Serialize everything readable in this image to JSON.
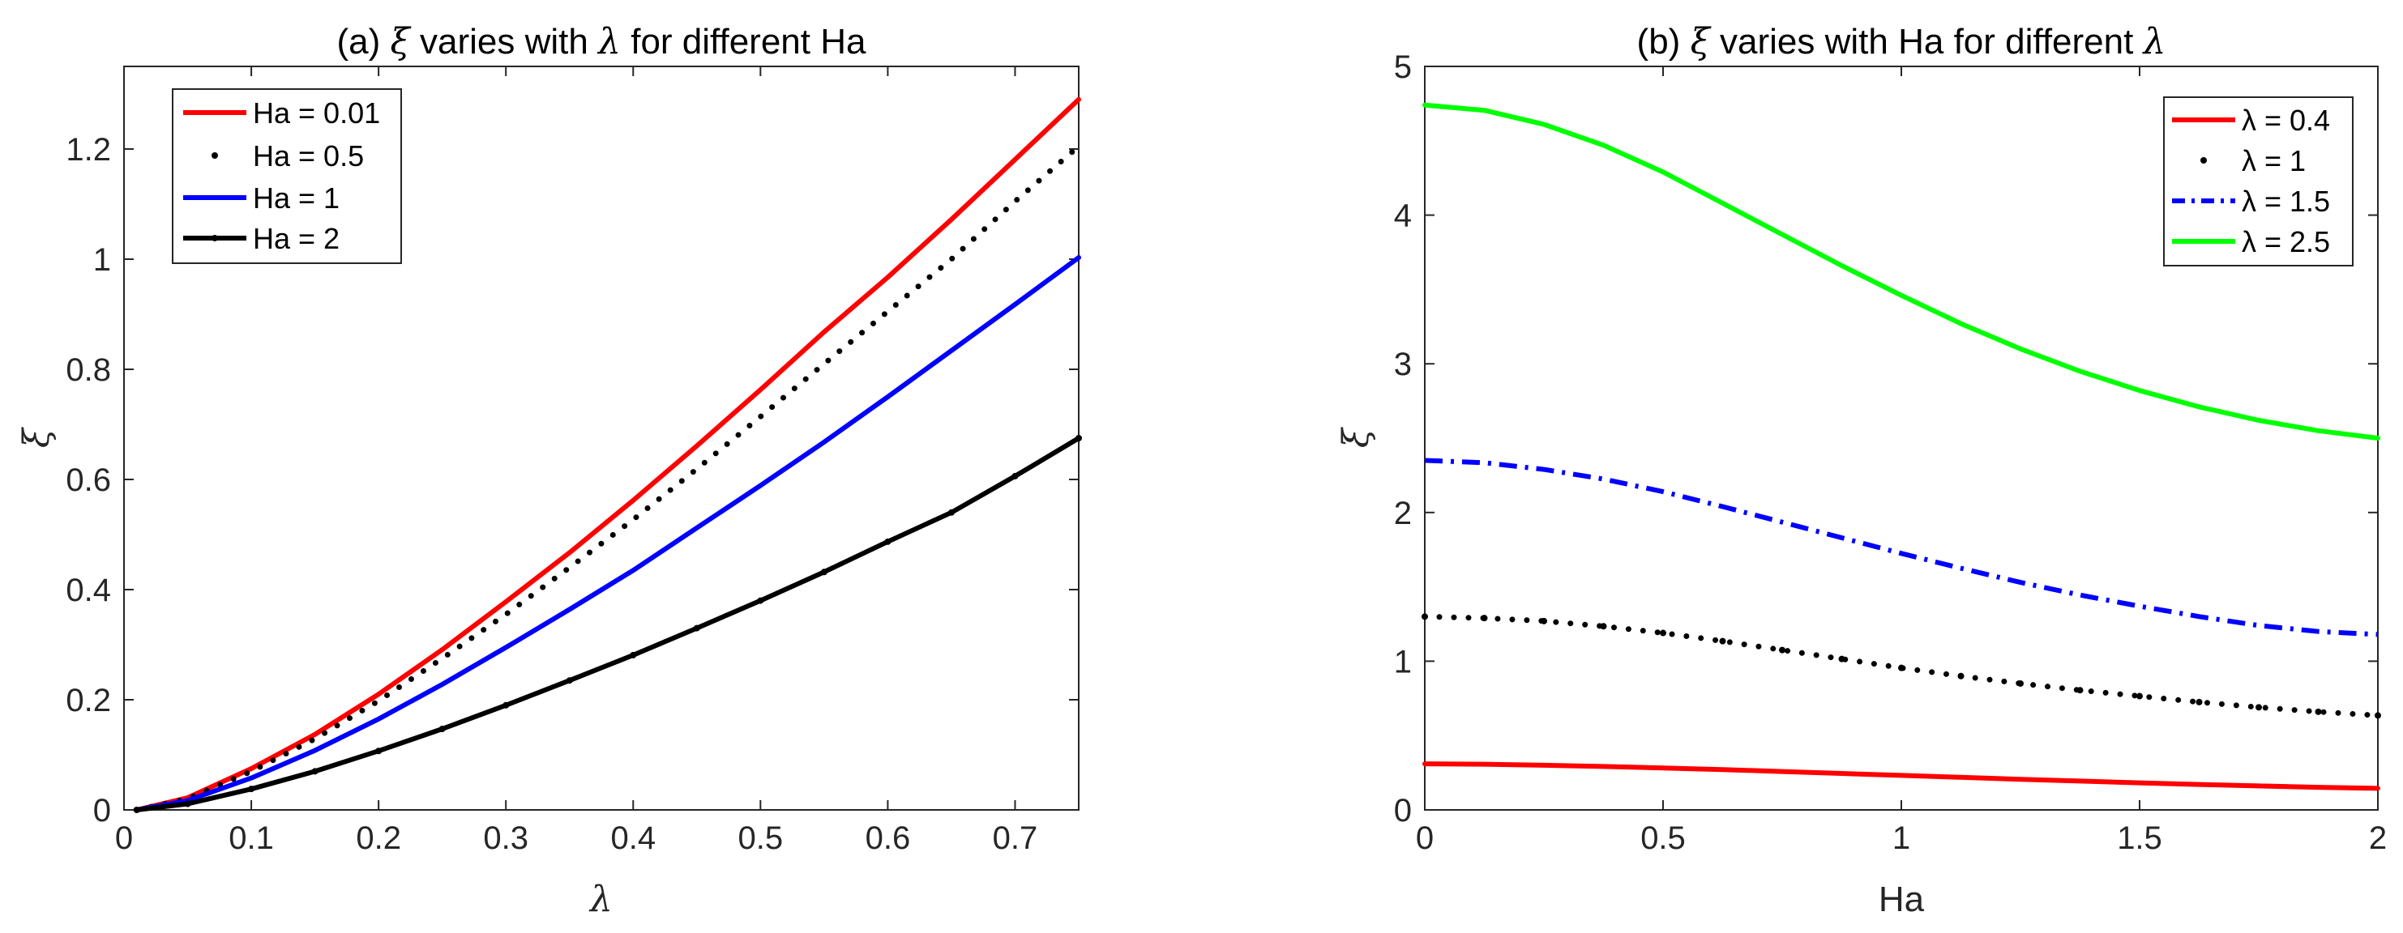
{
  "chart_data": [
    {
      "type": "line",
      "title_prefix": "(a)",
      "title_xi": "ξ",
      "title_mid": "varies with",
      "title_lambda": "λ",
      "title_suffix": "for different Ha",
      "xlabel": "λ",
      "ylabel": "ξ",
      "xlim": [
        0,
        0.75
      ],
      "ylim": [
        0,
        1.35
      ],
      "xticks": [
        0,
        0.1,
        0.2,
        0.3,
        0.4,
        0.5,
        0.6,
        0.7
      ],
      "xtick_labels": [
        "0",
        "0.1",
        "0.2",
        "0.3",
        "0.4",
        "0.5",
        "0.6",
        "0.7"
      ],
      "yticks": [
        0,
        0.2,
        0.4,
        0.6,
        0.8,
        1,
        1.2
      ],
      "ytick_labels": [
        "0",
        "0.2",
        "0.4",
        "0.6",
        "0.8",
        "1",
        "1.2"
      ],
      "legend_position": "top-left",
      "x": [
        0.01,
        0.05,
        0.1,
        0.15,
        0.2,
        0.25,
        0.3,
        0.35,
        0.4,
        0.45,
        0.5,
        0.55,
        0.6,
        0.65,
        0.7,
        0.75
      ],
      "series": [
        {
          "name": "Ha = 0.01",
          "color": "#ff0000",
          "style": "solid",
          "values": [
            0.0,
            0.022,
            0.075,
            0.137,
            0.21,
            0.291,
            0.378,
            0.467,
            0.562,
            0.661,
            0.763,
            0.868,
            0.967,
            1.072,
            1.181,
            1.29
          ]
        },
        {
          "name": "Ha = 0.5",
          "color": "#000000",
          "style": "dotted",
          "values": [
            0.0,
            0.02,
            0.07,
            0.129,
            0.198,
            0.275,
            0.355,
            0.44,
            0.527,
            0.619,
            0.714,
            0.81,
            0.905,
            1.0,
            1.105,
            1.205
          ]
        },
        {
          "name": "Ha = 1",
          "color": "#0000ff",
          "style": "solid",
          "values": [
            0.0,
            0.017,
            0.058,
            0.108,
            0.165,
            0.228,
            0.295,
            0.364,
            0.435,
            0.512,
            0.589,
            0.668,
            0.75,
            0.834,
            0.918,
            1.003
          ]
        },
        {
          "name": "Ha = 2",
          "color": "#000000",
          "style": "solid-marker",
          "values": [
            0.0,
            0.011,
            0.038,
            0.07,
            0.107,
            0.147,
            0.19,
            0.235,
            0.281,
            0.33,
            0.38,
            0.432,
            0.487,
            0.54,
            0.606,
            0.675
          ]
        }
      ]
    },
    {
      "type": "line",
      "title_prefix": "(b)",
      "title_xi": "ξ",
      "title_mid": "varies with Ha for different",
      "title_lambda": "λ",
      "xlabel": "Ha",
      "ylabel": "ξ",
      "xlim": [
        0,
        2
      ],
      "ylim": [
        0,
        5
      ],
      "xticks": [
        0,
        0.5,
        1,
        1.5,
        2
      ],
      "xtick_labels": [
        "0",
        "0.5",
        "1",
        "1.5",
        "2"
      ],
      "yticks": [
        0,
        1,
        2,
        3,
        4,
        5
      ],
      "ytick_labels": [
        "0",
        "1",
        "2",
        "3",
        "4",
        "5"
      ],
      "legend_position": "top-right",
      "x": [
        0,
        0.125,
        0.25,
        0.375,
        0.5,
        0.625,
        0.75,
        0.875,
        1,
        1.125,
        1.25,
        1.375,
        1.5,
        1.625,
        1.75,
        1.875,
        2
      ],
      "series": [
        {
          "name": "λ = 0.4",
          "color": "#ff0000",
          "style": "solid",
          "values": [
            0.31,
            0.307,
            0.3,
            0.292,
            0.282,
            0.271,
            0.258,
            0.245,
            0.232,
            0.219,
            0.206,
            0.194,
            0.182,
            0.171,
            0.161,
            0.152,
            0.145
          ]
        },
        {
          "name": "λ = 1",
          "color": "#000000",
          "style": "dotted",
          "values": [
            1.3,
            1.29,
            1.27,
            1.235,
            1.19,
            1.135,
            1.075,
            1.015,
            0.955,
            0.9,
            0.85,
            0.805,
            0.765,
            0.725,
            0.69,
            0.66,
            0.635
          ]
        },
        {
          "name": "λ = 1.5",
          "color": "#0000ff",
          "style": "dashdot",
          "values": [
            2.35,
            2.335,
            2.29,
            2.225,
            2.14,
            2.04,
            1.935,
            1.83,
            1.725,
            1.625,
            1.53,
            1.445,
            1.37,
            1.3,
            1.24,
            1.2,
            1.18
          ]
        },
        {
          "name": "λ = 2.5",
          "color": "#00ff00",
          "style": "solid",
          "values": [
            4.74,
            4.705,
            4.61,
            4.47,
            4.29,
            4.08,
            3.87,
            3.66,
            3.46,
            3.27,
            3.1,
            2.95,
            2.82,
            2.71,
            2.62,
            2.55,
            2.5
          ]
        }
      ]
    }
  ]
}
